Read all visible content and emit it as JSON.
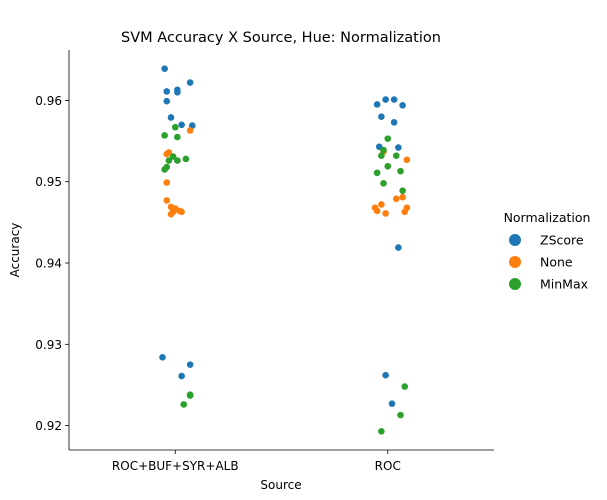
{
  "chart_data": {
    "type": "scatter",
    "subtype": "strip",
    "title": "SVM Accuracy X Source, Hue: Normalization",
    "xlabel": "Source",
    "ylabel": "Accuracy",
    "categories": [
      "ROC+BUF+SYR+ALB",
      "ROC"
    ],
    "ylim": [
      0.917,
      0.9662
    ],
    "yticks": [
      "0.92",
      "0.93",
      "0.94",
      "0.95",
      "0.96"
    ],
    "grid": false,
    "legend": {
      "title": "Normalization",
      "placement": "right"
    },
    "series": [
      {
        "name": "ZScore",
        "color": "#1f77b4",
        "points": [
          {
            "x": "ROC+BUF+SYR+ALB",
            "y": 0.9639,
            "jitter": -0.05
          },
          {
            "x": "ROC+BUF+SYR+ALB",
            "y": 0.9622,
            "jitter": 0.07
          },
          {
            "x": "ROC+BUF+SYR+ALB",
            "y": 0.9613,
            "jitter": 0.01
          },
          {
            "x": "ROC+BUF+SYR+ALB",
            "y": 0.9611,
            "jitter": -0.04
          },
          {
            "x": "ROC+BUF+SYR+ALB",
            "y": 0.961,
            "jitter": 0.01
          },
          {
            "x": "ROC+BUF+SYR+ALB",
            "y": 0.9599,
            "jitter": -0.04
          },
          {
            "x": "ROC+BUF+SYR+ALB",
            "y": 0.9579,
            "jitter": -0.02
          },
          {
            "x": "ROC+BUF+SYR+ALB",
            "y": 0.957,
            "jitter": 0.03
          },
          {
            "x": "ROC+BUF+SYR+ALB",
            "y": 0.9569,
            "jitter": 0.08
          },
          {
            "x": "ROC+BUF+SYR+ALB",
            "y": 0.9284,
            "jitter": -0.06
          },
          {
            "x": "ROC+BUF+SYR+ALB",
            "y": 0.9275,
            "jitter": 0.07
          },
          {
            "x": "ROC+BUF+SYR+ALB",
            "y": 0.9261,
            "jitter": 0.03
          },
          {
            "x": "ROC",
            "y": 0.9601,
            "jitter": -0.01
          },
          {
            "x": "ROC",
            "y": 0.9601,
            "jitter": 0.03
          },
          {
            "x": "ROC",
            "y": 0.9595,
            "jitter": -0.05
          },
          {
            "x": "ROC",
            "y": 0.9594,
            "jitter": 0.07
          },
          {
            "x": "ROC",
            "y": 0.958,
            "jitter": -0.03
          },
          {
            "x": "ROC",
            "y": 0.9573,
            "jitter": 0.03
          },
          {
            "x": "ROC",
            "y": 0.9543,
            "jitter": -0.04
          },
          {
            "x": "ROC",
            "y": 0.9542,
            "jitter": 0.05
          },
          {
            "x": "ROC",
            "y": 0.9419,
            "jitter": 0.05
          },
          {
            "x": "ROC",
            "y": 0.9262,
            "jitter": -0.01
          },
          {
            "x": "ROC",
            "y": 0.9227,
            "jitter": 0.02
          }
        ]
      },
      {
        "name": "None",
        "color": "#ff7f0e",
        "points": [
          {
            "x": "ROC+BUF+SYR+ALB",
            "y": 0.9563,
            "jitter": 0.07
          },
          {
            "x": "ROC+BUF+SYR+ALB",
            "y": 0.9536,
            "jitter": -0.03
          },
          {
            "x": "ROC+BUF+SYR+ALB",
            "y": 0.9534,
            "jitter": -0.04
          },
          {
            "x": "ROC+BUF+SYR+ALB",
            "y": 0.9477,
            "jitter": -0.04
          },
          {
            "x": "ROC+BUF+SYR+ALB",
            "y": 0.9469,
            "jitter": -0.02
          },
          {
            "x": "ROC+BUF+SYR+ALB",
            "y": 0.9467,
            "jitter": 0.0
          },
          {
            "x": "ROC+BUF+SYR+ALB",
            "y": 0.9464,
            "jitter": 0.02
          },
          {
            "x": "ROC+BUF+SYR+ALB",
            "y": 0.9463,
            "jitter": 0.03
          },
          {
            "x": "ROC+BUF+SYR+ALB",
            "y": 0.9463,
            "jitter": -0.01
          },
          {
            "x": "ROC+BUF+SYR+ALB",
            "y": 0.946,
            "jitter": -0.02
          },
          {
            "x": "ROC+BUF+SYR+ALB",
            "y": 0.9499,
            "jitter": -0.04
          },
          {
            "x": "ROC",
            "y": 0.9537,
            "jitter": -0.02
          },
          {
            "x": "ROC",
            "y": 0.9527,
            "jitter": 0.09
          },
          {
            "x": "ROC",
            "y": 0.9481,
            "jitter": 0.07
          },
          {
            "x": "ROC",
            "y": 0.9479,
            "jitter": 0.04
          },
          {
            "x": "ROC",
            "y": 0.9472,
            "jitter": -0.03
          },
          {
            "x": "ROC",
            "y": 0.9468,
            "jitter": -0.06
          },
          {
            "x": "ROC",
            "y": 0.9468,
            "jitter": 0.09
          },
          {
            "x": "ROC",
            "y": 0.9464,
            "jitter": -0.05
          },
          {
            "x": "ROC",
            "y": 0.9463,
            "jitter": 0.08
          },
          {
            "x": "ROC",
            "y": 0.9461,
            "jitter": -0.01
          }
        ]
      },
      {
        "name": "MinMax",
        "color": "#2ca02c",
        "points": [
          {
            "x": "ROC+BUF+SYR+ALB",
            "y": 0.9567,
            "jitter": 0.0
          },
          {
            "x": "ROC+BUF+SYR+ALB",
            "y": 0.9557,
            "jitter": -0.05
          },
          {
            "x": "ROC+BUF+SYR+ALB",
            "y": 0.9555,
            "jitter": 0.01
          },
          {
            "x": "ROC+BUF+SYR+ALB",
            "y": 0.9531,
            "jitter": -0.01
          },
          {
            "x": "ROC+BUF+SYR+ALB",
            "y": 0.9528,
            "jitter": 0.05
          },
          {
            "x": "ROC+BUF+SYR+ALB",
            "y": 0.9526,
            "jitter": 0.01
          },
          {
            "x": "ROC+BUF+SYR+ALB",
            "y": 0.9526,
            "jitter": -0.03
          },
          {
            "x": "ROC+BUF+SYR+ALB",
            "y": 0.9518,
            "jitter": -0.04
          },
          {
            "x": "ROC+BUF+SYR+ALB",
            "y": 0.9515,
            "jitter": -0.05
          },
          {
            "x": "ROC+BUF+SYR+ALB",
            "y": 0.9238,
            "jitter": 0.07
          },
          {
            "x": "ROC+BUF+SYR+ALB",
            "y": 0.9237,
            "jitter": 0.07
          },
          {
            "x": "ROC+BUF+SYR+ALB",
            "y": 0.9226,
            "jitter": 0.04
          },
          {
            "x": "ROC",
            "y": 0.9553,
            "jitter": 0.0
          },
          {
            "x": "ROC",
            "y": 0.9539,
            "jitter": -0.02
          },
          {
            "x": "ROC",
            "y": 0.9532,
            "jitter": -0.03
          },
          {
            "x": "ROC",
            "y": 0.9532,
            "jitter": 0.04
          },
          {
            "x": "ROC",
            "y": 0.9519,
            "jitter": 0.0
          },
          {
            "x": "ROC",
            "y": 0.9513,
            "jitter": 0.06
          },
          {
            "x": "ROC",
            "y": 0.9511,
            "jitter": -0.05
          },
          {
            "x": "ROC",
            "y": 0.9498,
            "jitter": -0.02
          },
          {
            "x": "ROC",
            "y": 0.9489,
            "jitter": 0.07
          },
          {
            "x": "ROC",
            "y": 0.9248,
            "jitter": 0.08
          },
          {
            "x": "ROC",
            "y": 0.9213,
            "jitter": 0.06
          },
          {
            "x": "ROC",
            "y": 0.9193,
            "jitter": -0.03
          }
        ]
      }
    ]
  }
}
